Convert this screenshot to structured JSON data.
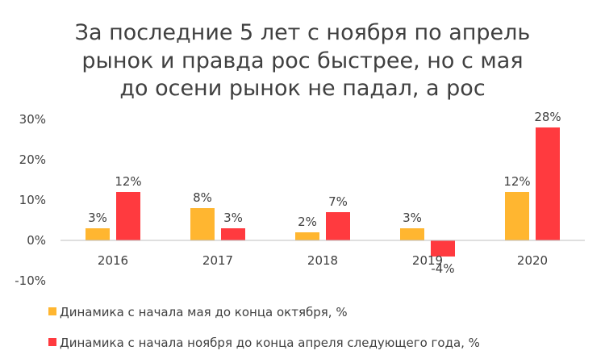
{
  "chart_data": {
    "type": "bar",
    "title_lines": [
      "За последние 5 лет с ноября по апрель",
      "рынок и правда рос быстрее, но с мая",
      "до осени рынок не падал, а рос"
    ],
    "categories": [
      "2016",
      "2017",
      "2018",
      "2019",
      "2020"
    ],
    "y_ticks": [
      "30%",
      "20%",
      "10%",
      "0%",
      "-10%"
    ],
    "ylim": [
      -10,
      30
    ],
    "grid": false,
    "legend_position": "bottom",
    "series": [
      {
        "name": "Динамика с начала мая до конца октября, %",
        "color": "#FFB630",
        "values": [
          3,
          8,
          2,
          3,
          12
        ],
        "labels": [
          "3%",
          "8%",
          "2%",
          "3%",
          "12%"
        ]
      },
      {
        "name": "Динамика с начала ноября до конца апреля следующего года, %",
        "color": "#FF3A3F",
        "values": [
          12,
          3,
          7,
          -4,
          28
        ],
        "labels": [
          "12%",
          "3%",
          "7%",
          "-4%",
          "28%"
        ]
      }
    ]
  }
}
